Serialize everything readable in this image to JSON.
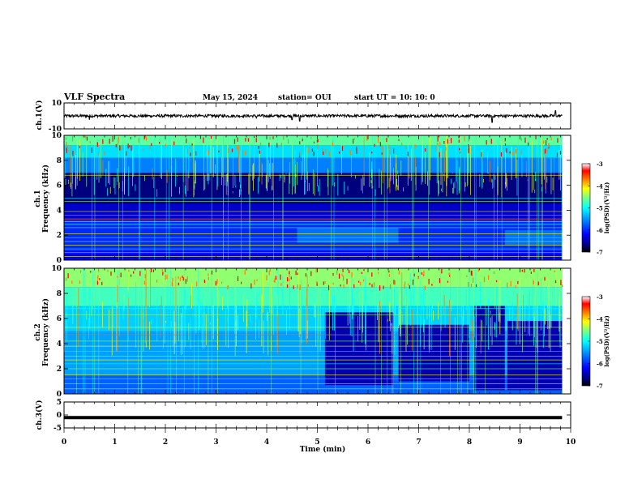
{
  "header": {
    "title": "VLF Spectra",
    "date": "May 15, 2024",
    "station": "station= OUI",
    "start": "start  UT  =   10: 10: 0"
  },
  "colors": {
    "colormap": [
      "#00007f",
      "#0000ff",
      "#007fff",
      "#00ffff",
      "#7fff7f",
      "#ffff00",
      "#ff7f00",
      "#ff0000",
      "#7f0000"
    ],
    "trace": "#000000"
  },
  "chart_data": [
    {
      "type": "line",
      "name": "ch1-waveform",
      "ylabel": "ch.1(V)",
      "ylim": [
        -10,
        10
      ],
      "yticks": [
        "10",
        "-10"
      ],
      "xlim": [
        0,
        10
      ],
      "baseline": 0,
      "spikes": [
        {
          "x": 0.5,
          "y": -3
        },
        {
          "x": 3.8,
          "y": -2
        },
        {
          "x": 4.5,
          "y": -3
        },
        {
          "x": 4.65,
          "y": -4
        },
        {
          "x": 8.45,
          "y": -5
        },
        {
          "x": 9.7,
          "y": 4
        }
      ]
    },
    {
      "type": "heatmap",
      "name": "ch1-spectrogram",
      "ylabel": "ch.1 Frequency (kHz)",
      "ylim": [
        0,
        10
      ],
      "yticks": [
        "0",
        "2",
        "4",
        "6",
        "8",
        "10"
      ],
      "xlim": [
        0,
        10
      ],
      "colorbar": {
        "label": "log(PSD)(V²/Hz)",
        "range": [
          -7,
          -3
        ],
        "ticks": [
          "-3",
          "-4",
          "-5",
          "-6",
          "-7"
        ]
      }
    },
    {
      "type": "heatmap",
      "name": "ch2-spectrogram",
      "ylabel": "ch.2 Frequency (kHz)",
      "ylim": [
        0,
        10
      ],
      "yticks": [
        "0",
        "2",
        "4",
        "6",
        "8",
        "10"
      ],
      "xlim": [
        0,
        10
      ],
      "colorbar": {
        "label": "log(PSD)(V²/Hz)",
        "range": [
          -7,
          -3
        ],
        "ticks": [
          "-3",
          "-4",
          "-5",
          "-6",
          "-7"
        ]
      }
    },
    {
      "type": "line",
      "name": "ch3-waveform",
      "ylabel": "ch.3(V)",
      "ylim": [
        -5,
        5
      ],
      "yticks": [
        "5",
        "0",
        "-5"
      ],
      "xlim": [
        0,
        10
      ],
      "constant": -1
    }
  ],
  "xaxis": {
    "label": "Time  (min)",
    "ticks": [
      "0",
      "1",
      "2",
      "3",
      "4",
      "5",
      "6",
      "7",
      "8",
      "9",
      "10"
    ]
  }
}
